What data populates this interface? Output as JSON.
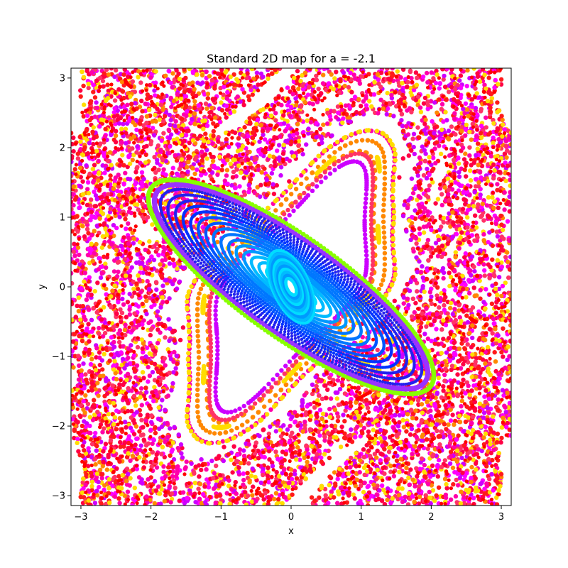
{
  "chart_data": {
    "type": "scatter",
    "title": "Standard 2D map for a = -2.1",
    "xlabel": "x",
    "ylabel": "y",
    "xlim": [
      -3.14159,
      3.14159
    ],
    "ylim": [
      -3.14159,
      3.14159
    ],
    "x_ticks": [
      -3,
      -2,
      -1,
      0,
      1,
      2,
      3
    ],
    "y_ticks": [
      -3,
      -2,
      -1,
      0,
      1,
      2,
      3
    ],
    "x_tick_labels": [
      "−3",
      "−2",
      "−1",
      "0",
      "1",
      "2",
      "3"
    ],
    "y_tick_labels": [
      "−3",
      "−2",
      "−1",
      "0",
      "1",
      "2",
      "3"
    ],
    "grid": false,
    "map": {
      "a": -2.1
    },
    "colors": {
      "chaotic_sea": [
        "#ff0044",
        "#ff00aa",
        "#ff3366",
        "#ffdd00",
        "#ff8800",
        "#cc00ff",
        "#ff00ff",
        "#ff1a1a"
      ],
      "island_border": "#9933ff",
      "resonance_chain": "#88ff00",
      "invariant_curves": [
        "#00ddff",
        "#00bbff",
        "#0099ff",
        "#0077ff",
        "#0055ff",
        "#0033ff",
        "#2222ee"
      ],
      "corner_islands": "#ff0000"
    }
  }
}
